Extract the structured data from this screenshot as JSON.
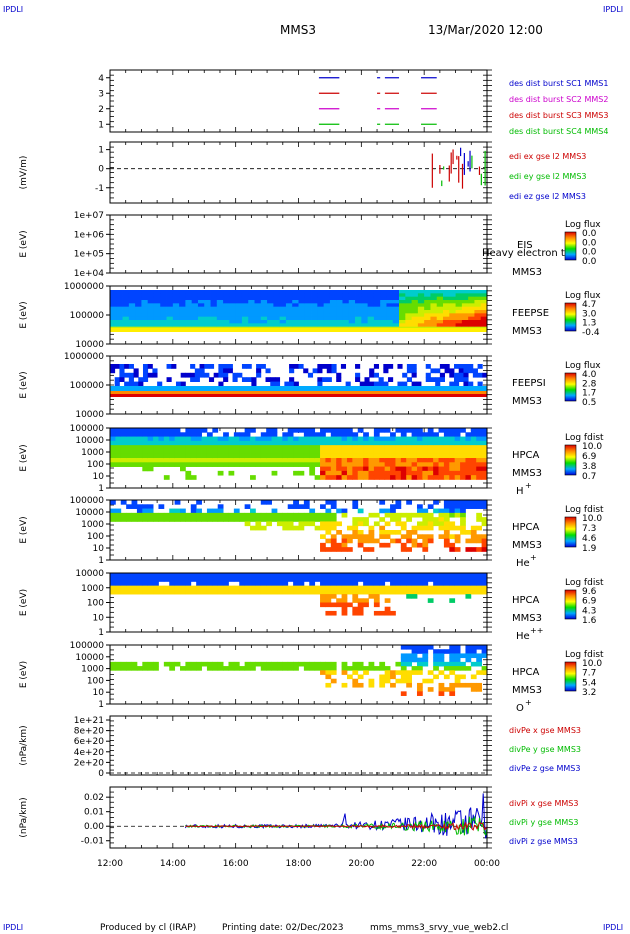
{
  "header": {
    "corner_tl": "IPDLI",
    "corner_tr": "IPDLI",
    "corner_bl": "IPDLI",
    "corner_br": "IPDLI",
    "spacecraft": "MMS3",
    "datetime": "13/Mar/2020 12:00"
  },
  "footer": {
    "produced_by": "Produced by cl (IRAP)",
    "printing_date": "Printing date: 02/Dec/2023",
    "filename": "mms_mms3_srvy_vue_web2.cl"
  },
  "colors": {
    "sc1": "#0000cc",
    "sc2": "#cc0000",
    "sc3": "#cc00cc",
    "sc4": "#00bb00",
    "ex": "#cc0000",
    "ey": "#00bb00",
    "ez": "#0000cc"
  },
  "chart_data": [
    {
      "id": "burst",
      "type": "line",
      "ylabel": "",
      "yticks": [
        "1",
        "2",
        "3",
        "4"
      ],
      "ylim": [
        0.5,
        4.5
      ],
      "legend": [
        "des dist burst SC1 MMS1",
        "des dist burst SC2 MMS2",
        "des dist burst SC3 MMS3",
        "des dist burst SC4 MMS4"
      ],
      "series": [
        {
          "name": "des dist burst SC1 MMS1",
          "level": 1,
          "segments": [
            [
              18.65,
              19.3
            ],
            [
              20.5,
              20.6
            ],
            [
              20.75,
              21.2
            ],
            [
              21.9,
              22.4
            ]
          ]
        },
        {
          "name": "des dist burst SC2 MMS2",
          "level": 2,
          "segments": [
            [
              18.65,
              19.3
            ],
            [
              20.5,
              20.6
            ],
            [
              20.75,
              21.2
            ],
            [
              21.9,
              22.4
            ]
          ]
        },
        {
          "name": "des dist burst SC3 MMS3",
          "level": 3,
          "segments": [
            [
              18.65,
              19.3
            ],
            [
              20.5,
              20.6
            ],
            [
              20.75,
              21.2
            ],
            [
              21.9,
              22.4
            ]
          ]
        },
        {
          "name": "des dist burst SC4 MMS4",
          "level": 4,
          "segments": [
            [
              18.65,
              19.3
            ],
            [
              20.5,
              20.6
            ],
            [
              20.75,
              21.2
            ],
            [
              21.9,
              22.4
            ]
          ]
        }
      ]
    },
    {
      "id": "edi",
      "type": "line",
      "ylabel": "(mV/m)",
      "yticks": [
        "1",
        "0",
        "-1"
      ],
      "ylim": [
        -1.8,
        1.4
      ],
      "legend": [
        "edi ex gse l2 MMS3",
        "edi ey gse l2 MMS3",
        "edi ez gse l2 MMS3"
      ],
      "active_range": [
        22.2,
        23.95
      ]
    },
    {
      "id": "eis",
      "type": "heatmap",
      "ylabel": "E (eV)",
      "yticks": [
        "1e+07",
        "1e+06",
        "1e+05",
        "1e+04"
      ],
      "instrument": "EIS",
      "sc": "MMS3",
      "overlay_text": "Heavy electron to",
      "colorbar_title": "Log flux",
      "colorbar_ticks": [
        "0.0",
        "0.0",
        "0.0",
        "0.0"
      ]
    },
    {
      "id": "feepse",
      "type": "heatmap",
      "ylabel": "E (eV)",
      "yticks": [
        "1000000",
        "100000",
        "10000"
      ],
      "instrument": "FEEPSE",
      "sc": "MMS3",
      "colorbar_title": "Log flux",
      "colorbar_ticks": [
        "4.7",
        "3.0",
        "1.3",
        "-0.4"
      ]
    },
    {
      "id": "feepsi",
      "type": "heatmap",
      "ylabel": "E (eV)",
      "yticks": [
        "1000000",
        "100000",
        "10000"
      ],
      "instrument": "FEEPSI",
      "sc": "MMS3",
      "colorbar_title": "Log flux",
      "colorbar_ticks": [
        "4.0",
        "2.8",
        "1.7",
        "0.5"
      ]
    },
    {
      "id": "hpca_h",
      "type": "heatmap",
      "ylabel": "E (eV)",
      "yticks": [
        "100000",
        "10000",
        "1000",
        "100",
        "10",
        "1"
      ],
      "instrument": "HPCA",
      "sc": "MMS3",
      "species": "H",
      "charge": "+",
      "colorbar_title": "Log fdist",
      "colorbar_ticks": [
        "10.0",
        "6.9",
        "3.8",
        "0.7"
      ]
    },
    {
      "id": "hpca_he",
      "type": "heatmap",
      "ylabel": "E (eV)",
      "yticks": [
        "100000",
        "10000",
        "1000",
        "100",
        "10",
        "1"
      ],
      "instrument": "HPCA",
      "sc": "MMS3",
      "species": "He",
      "charge": "+",
      "colorbar_title": "Log fdist",
      "colorbar_ticks": [
        "10.0",
        "7.3",
        "4.6",
        "1.9"
      ]
    },
    {
      "id": "hpca_hepp",
      "type": "heatmap",
      "ylabel": "E (eV)",
      "yticks": [
        "10000",
        "1000",
        "100",
        "10",
        "1"
      ],
      "instrument": "HPCA",
      "sc": "MMS3",
      "species": "He",
      "charge": "++",
      "colorbar_title": "Log fdist",
      "colorbar_ticks": [
        "9.6",
        "6.9",
        "4.3",
        "1.6"
      ]
    },
    {
      "id": "hpca_o",
      "type": "heatmap",
      "ylabel": "E (eV)",
      "yticks": [
        "100000",
        "10000",
        "1000",
        "100",
        "10",
        "1"
      ],
      "instrument": "HPCA",
      "sc": "MMS3",
      "species": "O",
      "charge": "+",
      "colorbar_title": "Log fdist",
      "colorbar_ticks": [
        "10.0",
        "7.7",
        "5.4",
        "3.2"
      ]
    },
    {
      "id": "divpe",
      "type": "line",
      "ylabel": "(nPa/km)",
      "yticks": [
        "1e+21",
        "8e+20",
        "6e+20",
        "4e+20",
        "2e+20",
        "0"
      ],
      "ylim": [
        0,
        1e+21
      ],
      "legend": [
        "divPe x gse MMS3",
        "divPe y gse MMS3",
        "divPe z gse MMS3"
      ]
    },
    {
      "id": "divpi",
      "type": "line",
      "ylabel": "(nPa/km)",
      "yticks": [
        "0.02",
        "0.01",
        "0.00",
        "-0.01"
      ],
      "ylim": [
        -0.015,
        0.027
      ],
      "legend": [
        "divPi x gse MMS3",
        "divPi y gse MMS3",
        "divPi z gse MMS3"
      ],
      "active_range": [
        14.4,
        24.0
      ]
    }
  ],
  "xaxis": {
    "ticks": [
      "12:00",
      "14:00",
      "16:00",
      "18:00",
      "20:00",
      "22:00",
      "00:00"
    ],
    "range_hours": [
      12,
      24
    ]
  }
}
